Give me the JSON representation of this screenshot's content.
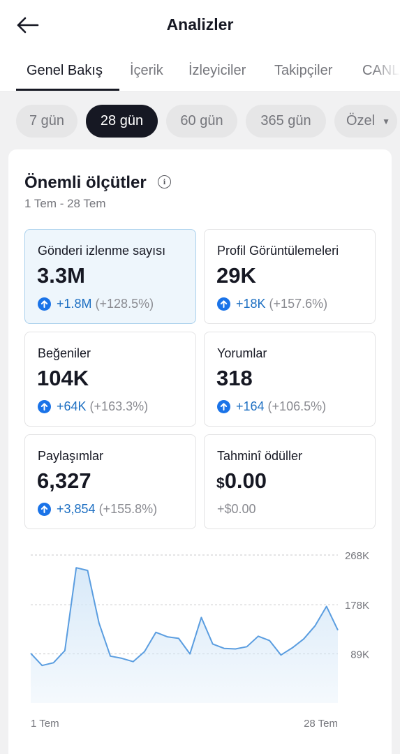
{
  "header": {
    "title": "Analizler"
  },
  "tabs": [
    "Genel Bakış",
    "İçerik",
    "İzleyiciler",
    "Takipçiler",
    "CANL"
  ],
  "ranges": [
    "7 gün",
    "28 gün",
    "60 gün",
    "365 gün",
    "Özel"
  ],
  "overview": {
    "title": "Önemli ölçütler",
    "info_icon": "i",
    "date_range": "1 Tem - 28 Tem",
    "metrics": [
      {
        "label": "Gönderi izlenme sayısı",
        "value": "3.3M",
        "delta": "+1.8M",
        "pct": "(+128.5%)"
      },
      {
        "label": "Profil Görüntülemeleri",
        "value": "29K",
        "delta": "+18K",
        "pct": "(+157.6%)"
      },
      {
        "label": "Beğeniler",
        "value": "104K",
        "delta": "+64K",
        "pct": "(+163.3%)"
      },
      {
        "label": "Yorumlar",
        "value": "318",
        "delta": "+164",
        "pct": "(+106.5%)"
      },
      {
        "label": "Paylaşımlar",
        "value": "6,327",
        "delta": "+3,854",
        "pct": "(+155.8%)"
      },
      {
        "label": "Tahminî ödüller",
        "currency": "$",
        "value": "0.00",
        "delta": "+$0.00"
      }
    ]
  },
  "colors": {
    "accent": "#1d6fc2",
    "line": "#5a9de0",
    "fill": "#d6e8f8",
    "text": "#161823",
    "muted": "#75767c"
  },
  "chart_data": {
    "type": "area",
    "x_labels": [
      "1 Tem",
      "28 Tem"
    ],
    "y_ticks": [
      "89K",
      "178K",
      "268K"
    ],
    "ylim": [
      0,
      268000
    ],
    "values": [
      90000,
      68000,
      73000,
      95000,
      245000,
      240000,
      145000,
      85000,
      81000,
      75000,
      93000,
      128000,
      120000,
      117000,
      89000,
      155000,
      107000,
      99000,
      98000,
      102000,
      121000,
      113000,
      87000,
      100000,
      116000,
      140000,
      175000,
      132000
    ],
    "grid": true
  }
}
